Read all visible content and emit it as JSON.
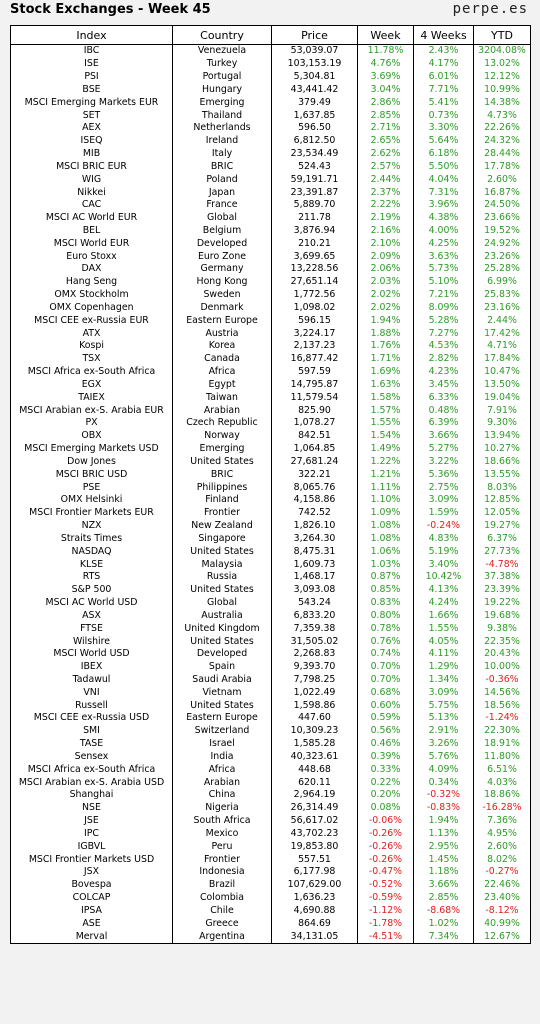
{
  "header": {
    "title": "Stock Exchanges - Week 45",
    "brand": "perpe.es"
  },
  "columns": [
    "Index",
    "Country",
    "Price",
    "Week",
    "4 Weeks",
    "YTD"
  ],
  "colors": {
    "positive": "#2e9b28",
    "negative": "#e02020"
  },
  "rows": [
    [
      "IBC",
      "Venezuela",
      "53,039.07",
      "11.78%",
      "2.43%",
      "3204.08%"
    ],
    [
      "ISE",
      "Turkey",
      "103,153.19",
      "4.76%",
      "4.17%",
      "13.02%"
    ],
    [
      "PSI",
      "Portugal",
      "5,304.81",
      "3.69%",
      "6.01%",
      "12.12%"
    ],
    [
      "BSE",
      "Hungary",
      "43,441.42",
      "3.04%",
      "7.71%",
      "10.99%"
    ],
    [
      "MSCI Emerging Markets EUR",
      "Emerging",
      "379.49",
      "2.86%",
      "5.41%",
      "14.38%"
    ],
    [
      "SET",
      "Thailand",
      "1,637.85",
      "2.85%",
      "0.73%",
      "4.73%"
    ],
    [
      "AEX",
      "Netherlands",
      "596.50",
      "2.71%",
      "3.30%",
      "22.26%"
    ],
    [
      "ISEQ",
      "Ireland",
      "6,812.50",
      "2.65%",
      "5.64%",
      "24.32%"
    ],
    [
      "MIB",
      "Italy",
      "23,534.49",
      "2.62%",
      "6.18%",
      "28.44%"
    ],
    [
      "MSCI BRIC EUR",
      "BRIC",
      "524.43",
      "2.57%",
      "5.50%",
      "17.78%"
    ],
    [
      "WIG",
      "Poland",
      "59,191.71",
      "2.44%",
      "4.04%",
      "2.60%"
    ],
    [
      "Nikkei",
      "Japan",
      "23,391.87",
      "2.37%",
      "7.31%",
      "16.87%"
    ],
    [
      "CAC",
      "France",
      "5,889.70",
      "2.22%",
      "3.96%",
      "24.50%"
    ],
    [
      "MSCI AC World EUR",
      "Global",
      "211.78",
      "2.19%",
      "4.38%",
      "23.66%"
    ],
    [
      "BEL",
      "Belgium",
      "3,876.94",
      "2.16%",
      "4.00%",
      "19.52%"
    ],
    [
      "MSCI World EUR",
      "Developed",
      "210.21",
      "2.10%",
      "4.25%",
      "24.92%"
    ],
    [
      "Euro Stoxx",
      "Euro Zone",
      "3,699.65",
      "2.09%",
      "3.63%",
      "23.26%"
    ],
    [
      "DAX",
      "Germany",
      "13,228.56",
      "2.06%",
      "5.73%",
      "25.28%"
    ],
    [
      "Hang Seng",
      "Hong Kong",
      "27,651.14",
      "2.03%",
      "5.10%",
      "6.99%"
    ],
    [
      "OMX Stockholm",
      "Sweden",
      "1,772.56",
      "2.02%",
      "7.21%",
      "25.83%"
    ],
    [
      "OMX Copenhagen",
      "Denmark",
      "1,098.02",
      "2.02%",
      "8.09%",
      "23.16%"
    ],
    [
      "MSCI CEE ex-Russia EUR",
      "Eastern Europe",
      "596.15",
      "1.94%",
      "5.28%",
      "2.44%"
    ],
    [
      "ATX",
      "Austria",
      "3,224.17",
      "1.88%",
      "7.27%",
      "17.42%"
    ],
    [
      "Kospi",
      "Korea",
      "2,137.23",
      "1.76%",
      "4.53%",
      "4.71%"
    ],
    [
      "TSX",
      "Canada",
      "16,877.42",
      "1.71%",
      "2.82%",
      "17.84%"
    ],
    [
      "MSCI Africa ex-South Africa",
      "Africa",
      "597.59",
      "1.69%",
      "4.23%",
      "10.47%"
    ],
    [
      "EGX",
      "Egypt",
      "14,795.87",
      "1.63%",
      "3.45%",
      "13.50%"
    ],
    [
      "TAIEX",
      "Taiwan",
      "11,579.54",
      "1.58%",
      "6.33%",
      "19.04%"
    ],
    [
      "MSCI Arabian ex-S. Arabia EUR",
      "Arabian",
      "825.90",
      "1.57%",
      "0.48%",
      "7.91%"
    ],
    [
      "PX",
      "Czech Republic",
      "1,078.27",
      "1.55%",
      "6.39%",
      "9.30%"
    ],
    [
      "OBX",
      "Norway",
      "842.51",
      "1.54%",
      "3.66%",
      "13.94%"
    ],
    [
      "MSCI Emerging Markets USD",
      "Emerging",
      "1,064.85",
      "1.49%",
      "5.27%",
      "10.27%"
    ],
    [
      "Dow Jones",
      "United States",
      "27,681.24",
      "1.22%",
      "3.22%",
      "18.66%"
    ],
    [
      "MSCI BRIC USD",
      "BRIC",
      "322.21",
      "1.21%",
      "5.36%",
      "13.55%"
    ],
    [
      "PSE",
      "Philippines",
      "8,065.76",
      "1.11%",
      "2.75%",
      "8.03%"
    ],
    [
      "OMX Helsinki",
      "Finland",
      "4,158.86",
      "1.10%",
      "3.09%",
      "12.85%"
    ],
    [
      "MSCI Frontier Markets EUR",
      "Frontier",
      "742.52",
      "1.09%",
      "1.59%",
      "12.05%"
    ],
    [
      "NZX",
      "New Zealand",
      "1,826.10",
      "1.08%",
      "-0.24%",
      "19.27%"
    ],
    [
      "Straits Times",
      "Singapore",
      "3,264.30",
      "1.08%",
      "4.83%",
      "6.37%"
    ],
    [
      "NASDAQ",
      "United States",
      "8,475.31",
      "1.06%",
      "5.19%",
      "27.73%"
    ],
    [
      "KLSE",
      "Malaysia",
      "1,609.73",
      "1.03%",
      "3.40%",
      "-4.78%"
    ],
    [
      "RTS",
      "Russia",
      "1,468.17",
      "0.87%",
      "10.42%",
      "37.38%"
    ],
    [
      "S&P 500",
      "United States",
      "3,093.08",
      "0.85%",
      "4.13%",
      "23.39%"
    ],
    [
      "MSCI AC World USD",
      "Global",
      "543.24",
      "0.83%",
      "4.24%",
      "19.22%"
    ],
    [
      "ASX",
      "Australia",
      "6,833.20",
      "0.80%",
      "1.66%",
      "19.68%"
    ],
    [
      "FTSE",
      "United Kingdom",
      "7,359.38",
      "0.78%",
      "1.55%",
      "9.38%"
    ],
    [
      "Wilshire",
      "United States",
      "31,505.02",
      "0.76%",
      "4.05%",
      "22.35%"
    ],
    [
      "MSCI World USD",
      "Developed",
      "2,268.83",
      "0.74%",
      "4.11%",
      "20.43%"
    ],
    [
      "IBEX",
      "Spain",
      "9,393.70",
      "0.70%",
      "1.29%",
      "10.00%"
    ],
    [
      "Tadawul",
      "Saudi Arabia",
      "7,798.25",
      "0.70%",
      "1.34%",
      "-0.36%"
    ],
    [
      "VNI",
      "Vietnam",
      "1,022.49",
      "0.68%",
      "3.09%",
      "14.56%"
    ],
    [
      "Russell",
      "United States",
      "1,598.86",
      "0.60%",
      "5.75%",
      "18.56%"
    ],
    [
      "MSCI CEE ex-Russia USD",
      "Eastern Europe",
      "447.60",
      "0.59%",
      "5.13%",
      "-1.24%"
    ],
    [
      "SMI",
      "Switzerland",
      "10,309.23",
      "0.56%",
      "2.91%",
      "22.30%"
    ],
    [
      "TASE",
      "Israel",
      "1,585.28",
      "0.46%",
      "3.26%",
      "18.91%"
    ],
    [
      "Sensex",
      "India",
      "40,323.61",
      "0.39%",
      "5.76%",
      "11.80%"
    ],
    [
      "MSCI Africa ex-South Africa",
      "Africa",
      "448.68",
      "0.33%",
      "4.09%",
      "6.51%"
    ],
    [
      "MSCI Arabian ex-S. Arabia USD",
      "Arabian",
      "620.11",
      "0.22%",
      "0.34%",
      "4.03%"
    ],
    [
      "Shanghai",
      "China",
      "2,964.19",
      "0.20%",
      "-0.32%",
      "18.86%"
    ],
    [
      "NSE",
      "Nigeria",
      "26,314.49",
      "0.08%",
      "-0.83%",
      "-16.28%"
    ],
    [
      "JSE",
      "South Africa",
      "56,617.02",
      "-0.06%",
      "1.94%",
      "7.36%"
    ],
    [
      "IPC",
      "Mexico",
      "43,702.23",
      "-0.26%",
      "1.13%",
      "4.95%"
    ],
    [
      "IGBVL",
      "Peru",
      "19,853.80",
      "-0.26%",
      "2.95%",
      "2.60%"
    ],
    [
      "MSCI Frontier Markets USD",
      "Frontier",
      "557.51",
      "-0.26%",
      "1.45%",
      "8.02%"
    ],
    [
      "JSX",
      "Indonesia",
      "6,177.98",
      "-0.47%",
      "1.18%",
      "-0.27%"
    ],
    [
      "Bovespa",
      "Brazil",
      "107,629.00",
      "-0.52%",
      "3.66%",
      "22.46%"
    ],
    [
      "COLCAP",
      "Colombia",
      "1,636.23",
      "-0.59%",
      "2.85%",
      "23.40%"
    ],
    [
      "IPSA",
      "Chile",
      "4,690.88",
      "-1.12%",
      "-8.68%",
      "-8.12%"
    ],
    [
      "ASE",
      "Greece",
      "864.69",
      "-1.78%",
      "1.02%",
      "40.99%"
    ],
    [
      "Merval",
      "Argentina",
      "34,131.05",
      "-4.51%",
      "7.34%",
      "12.67%"
    ]
  ]
}
